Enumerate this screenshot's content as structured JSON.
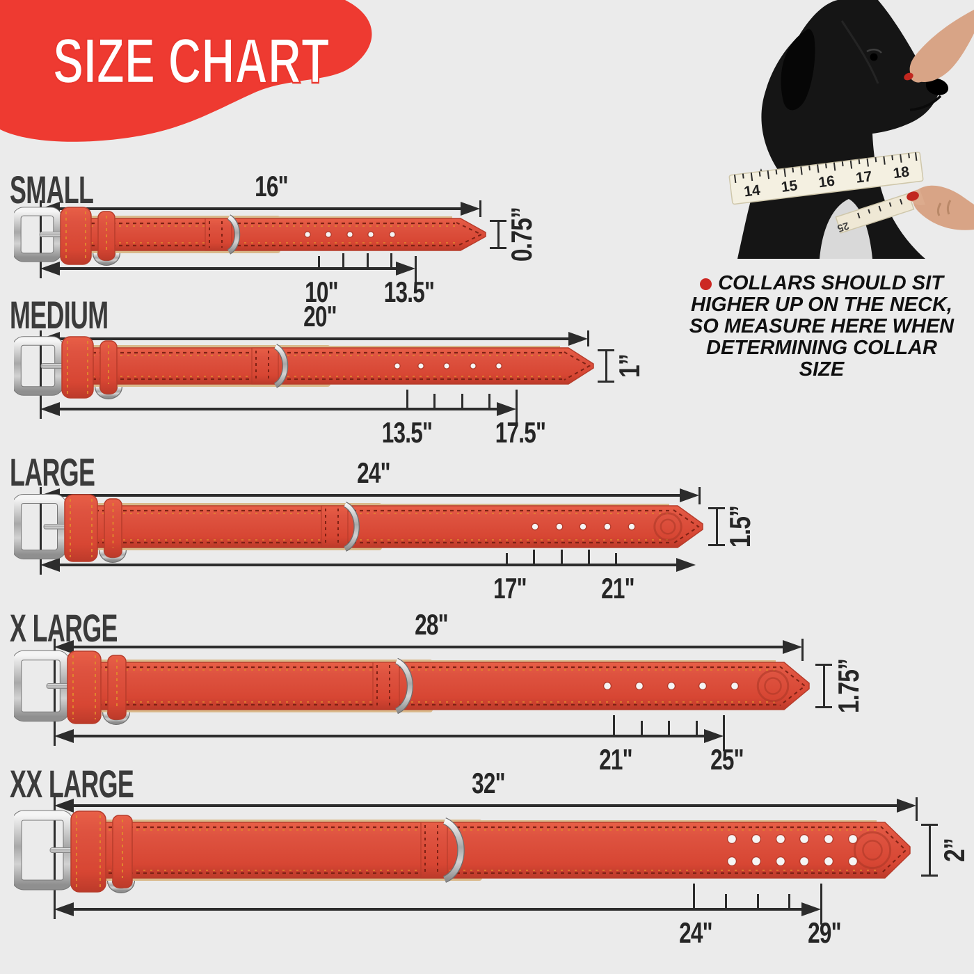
{
  "title": "SIZE CHART",
  "note": {
    "lines": [
      "COLLARS SHOULD SIT",
      "HIGHER UP ON THE NECK,",
      "SO MEASURE HERE WHEN",
      "DETERMINING COLLAR",
      "SIZE"
    ]
  },
  "photo": {
    "tape_numbers": [
      "14",
      "15",
      "16",
      "17",
      "18"
    ],
    "tape_tail_number": "25"
  },
  "sizes": [
    {
      "label": "SMALL",
      "total": "16\"",
      "width": "0.75”",
      "min": "10\"",
      "max": "13.5\""
    },
    {
      "label": "MEDIUM",
      "total": "20\"",
      "width": "1”",
      "min": "13.5\"",
      "max": "17.5\""
    },
    {
      "label": "LARGE",
      "total": "24\"",
      "width": "1.5”",
      "min": "17\"",
      "max": "21\""
    },
    {
      "label": "X LARGE",
      "total": "28\"",
      "width": "1.75”",
      "min": "21\"",
      "max": "25\""
    },
    {
      "label": "XX LARGE",
      "total": "32\"",
      "width": "2”",
      "min": "24\"",
      "max": "29\""
    }
  ],
  "colors": {
    "background": "#ebebeb",
    "accent_red": "#ee3a31",
    "collar_red": "#dd4e3a",
    "line_dark": "#2c2c2c",
    "note_bullet": "#cc2823",
    "metal": "#c9c9c9",
    "tan_leather": "#d9b98a"
  }
}
